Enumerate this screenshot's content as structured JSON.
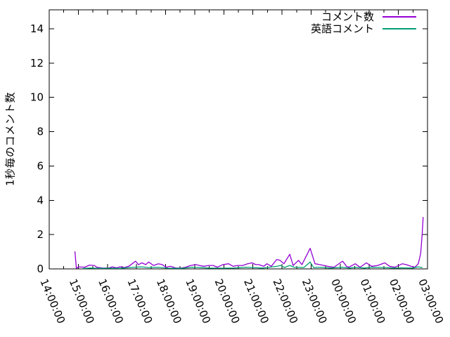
{
  "page": {
    "background": "#ffffff"
  },
  "chart_data": {
    "type": "line",
    "title": "",
    "xlabel": "",
    "ylabel": "1秒毎のコメント数",
    "grid": false,
    "legend_position": "top-right-inside",
    "axis_color": "#000000",
    "y_ticks": [
      0,
      2,
      4,
      6,
      8,
      10,
      12,
      14
    ],
    "ylim": [
      0,
      15.1
    ],
    "x_tick_labels": [
      "14:00:00",
      "15:00:00",
      "16:00:00",
      "17:00:00",
      "18:00:00",
      "19:00:00",
      "20:00:00",
      "21:00:00",
      "22:00:00",
      "23:00:00",
      "00:00:00",
      "01:00:00",
      "02:00:00",
      "03:00:00"
    ],
    "x_minor_tick_interval_minutes": 30,
    "series": [
      {
        "name": "コメント数",
        "color": "#9400d3",
        "points": [
          [
            "14:53",
            1.0
          ],
          [
            "14:56",
            0.04
          ],
          [
            "15:01",
            0.12
          ],
          [
            "15:13",
            0.1
          ],
          [
            "15:23",
            0.22
          ],
          [
            "15:33",
            0.2
          ],
          [
            "15:38",
            0.1
          ],
          [
            "15:50",
            0.05
          ],
          [
            "16:03",
            0.05
          ],
          [
            "16:10",
            0.12
          ],
          [
            "16:19",
            0.06
          ],
          [
            "16:26",
            0.12
          ],
          [
            "16:35",
            0.08
          ],
          [
            "16:44",
            0.15
          ],
          [
            "16:51",
            0.3
          ],
          [
            "16:58",
            0.45
          ],
          [
            "17:04",
            0.25
          ],
          [
            "17:11",
            0.35
          ],
          [
            "17:19",
            0.25
          ],
          [
            "17:25",
            0.4
          ],
          [
            "17:35",
            0.2
          ],
          [
            "17:45",
            0.3
          ],
          [
            "17:53",
            0.25
          ],
          [
            "18:01",
            0.1
          ],
          [
            "18:10",
            0.15
          ],
          [
            "18:21",
            0.05
          ],
          [
            "18:32",
            0.05
          ],
          [
            "18:41",
            0.1
          ],
          [
            "18:52",
            0.2
          ],
          [
            "19:02",
            0.25
          ],
          [
            "19:10",
            0.2
          ],
          [
            "19:19",
            0.15
          ],
          [
            "19:29",
            0.2
          ],
          [
            "19:38",
            0.2
          ],
          [
            "19:47",
            0.1
          ],
          [
            "19:58",
            0.25
          ],
          [
            "20:10",
            0.3
          ],
          [
            "20:19",
            0.15
          ],
          [
            "20:29",
            0.2
          ],
          [
            "20:39",
            0.2
          ],
          [
            "20:49",
            0.3
          ],
          [
            "20:58",
            0.35
          ],
          [
            "21:06",
            0.25
          ],
          [
            "21:12",
            0.25
          ],
          [
            "21:22",
            0.15
          ],
          [
            "21:29",
            0.3
          ],
          [
            "21:38",
            0.15
          ],
          [
            "21:49",
            0.55
          ],
          [
            "21:56",
            0.5
          ],
          [
            "22:04",
            0.3
          ],
          [
            "22:16",
            0.85
          ],
          [
            "22:23",
            0.2
          ],
          [
            "22:34",
            0.5
          ],
          [
            "22:41",
            0.25
          ],
          [
            "22:58",
            1.2
          ],
          [
            "23:08",
            0.3
          ],
          [
            "23:18",
            0.25
          ],
          [
            "23:34",
            0.15
          ],
          [
            "23:47",
            0.1
          ],
          [
            "00:05",
            0.45
          ],
          [
            "00:13",
            0.15
          ],
          [
            "00:18",
            0.1
          ],
          [
            "00:31",
            0.3
          ],
          [
            "00:41",
            0.1
          ],
          [
            "00:54",
            0.35
          ],
          [
            "01:05",
            0.15
          ],
          [
            "01:17",
            0.2
          ],
          [
            "01:32",
            0.35
          ],
          [
            "01:42",
            0.15
          ],
          [
            "01:53",
            0.1
          ],
          [
            "02:08",
            0.3
          ],
          [
            "02:16",
            0.25
          ],
          [
            "02:26",
            0.15
          ],
          [
            "02:34",
            0.1
          ],
          [
            "02:41",
            0.3
          ],
          [
            "02:46",
            0.9
          ],
          [
            "02:49",
            2.0
          ],
          [
            "02:51",
            3.0
          ]
        ]
      },
      {
        "name": "英語コメント",
        "color": "#009e73",
        "points": [
          [
            "15:10",
            0.03
          ],
          [
            "15:25",
            0.05
          ],
          [
            "15:45",
            0.03
          ],
          [
            "16:05",
            0.04
          ],
          [
            "16:25",
            0.03
          ],
          [
            "16:45",
            0.08
          ],
          [
            "16:55",
            0.1
          ],
          [
            "17:10",
            0.12
          ],
          [
            "17:25",
            0.08
          ],
          [
            "17:45",
            0.1
          ],
          [
            "18:05",
            0.04
          ],
          [
            "18:30",
            0.03
          ],
          [
            "18:55",
            0.1
          ],
          [
            "19:10",
            0.08
          ],
          [
            "19:30",
            0.05
          ],
          [
            "19:55",
            0.04
          ],
          [
            "20:20",
            0.05
          ],
          [
            "20:45",
            0.1
          ],
          [
            "21:00",
            0.08
          ],
          [
            "21:20",
            0.05
          ],
          [
            "21:40",
            0.12
          ],
          [
            "21:50",
            0.15
          ],
          [
            "21:57",
            0.2
          ],
          [
            "22:05",
            0.08
          ],
          [
            "22:16",
            0.2
          ],
          [
            "22:25",
            0.1
          ],
          [
            "22:45",
            0.08
          ],
          [
            "22:58",
            0.4
          ],
          [
            "23:05",
            0.08
          ],
          [
            "23:20",
            0.1
          ],
          [
            "23:40",
            0.05
          ],
          [
            "00:05",
            0.1
          ],
          [
            "00:20",
            0.05
          ],
          [
            "00:31",
            0.1
          ],
          [
            "00:50",
            0.05
          ],
          [
            "01:05",
            0.1
          ],
          [
            "01:30",
            0.08
          ],
          [
            "01:50",
            0.05
          ],
          [
            "02:10",
            0.06
          ],
          [
            "02:30",
            0.05
          ],
          [
            "02:40",
            0.12
          ],
          [
            "02:49",
            0.08
          ]
        ]
      }
    ]
  }
}
